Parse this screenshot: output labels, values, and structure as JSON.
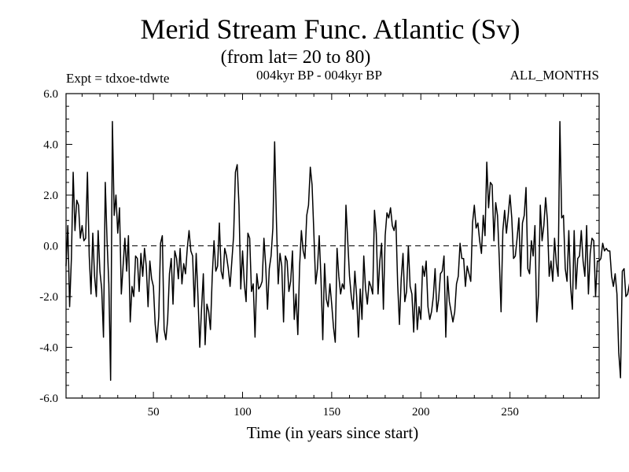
{
  "chart_data": {
    "type": "line",
    "title": "Merid Stream Func. Atlantic (Sv)",
    "subtitle": "(from lat= 20 to 80)",
    "experiment": "Expt = tdxoe-tdwte",
    "period": "004kyr BP - 004kyr BP",
    "months": "ALL_MONTHS",
    "xlabel": "Time (in years since start)",
    "ylabel": "",
    "xlim": [
      1,
      300
    ],
    "ylim": [
      -6,
      6
    ],
    "xticks": [
      50,
      100,
      150,
      200,
      250
    ],
    "xtick_labels": [
      "50",
      "100",
      "150",
      "200",
      "250"
    ],
    "yticks": [
      -6,
      -4,
      -2,
      0,
      2,
      4,
      6
    ],
    "ytick_labels": [
      "-6.0",
      "-4.0",
      "-2.0",
      "0.0",
      "2.0",
      "4.0",
      "6.0"
    ],
    "reference_line": 0,
    "series": [
      {
        "name": "Merid Stream Func. Atlantic",
        "x_start": 1,
        "x_step": 1,
        "values": [
          -0.8,
          0.8,
          -2.4,
          -0.5,
          2.9,
          0.6,
          1.8,
          1.6,
          0.3,
          0.8,
          0.2,
          0.3,
          2.9,
          -0.4,
          -1.9,
          0.5,
          -1.2,
          -2.0,
          0.6,
          -1.0,
          -1.7,
          -3.6,
          2.5,
          0.2,
          -1.5,
          -5.3,
          4.9,
          1.2,
          2.0,
          0.5,
          1.5,
          -1.9,
          -0.8,
          0.3,
          -1.0,
          0.4,
          -3.0,
          -1.6,
          -2.0,
          -0.4,
          -0.5,
          -1.8,
          -0.3,
          -1.2,
          -0.1,
          -0.8,
          -2.4,
          -0.6,
          -1.3,
          -1.6,
          -3.1,
          -3.8,
          -2.8,
          0.1,
          0.4,
          -3.3,
          -3.7,
          -2.9,
          -1.1,
          -0.5,
          -2.3,
          -0.2,
          -0.5,
          -1.3,
          -0.1,
          -1.5,
          -0.7,
          -1.1,
          -0.1,
          0.6,
          -0.2,
          -0.4,
          -2.4,
          -0.3,
          -2.0,
          -4.0,
          -2.5,
          -1.1,
          -3.9,
          -2.3,
          -2.6,
          -3.3,
          -1.2,
          0.2,
          -1.0,
          -0.8,
          0.9,
          -1.0,
          -1.3,
          -0.1,
          -0.4,
          -0.9,
          -1.6,
          -0.6,
          0.4,
          2.9,
          3.2,
          1.6,
          -1.7,
          -0.2,
          -1.5,
          -2.2,
          0.5,
          0.3,
          -1.8,
          -1.5,
          -3.6,
          -1.1,
          -1.7,
          -1.6,
          -1.4,
          0.3,
          -0.8,
          -2.5,
          -0.9,
          -0.4,
          0.7,
          4.1,
          1.0,
          -1.5,
          -0.3,
          -0.8,
          -3.0,
          -0.4,
          -0.6,
          -1.8,
          -1.4,
          -0.2,
          -2.9,
          -1.9,
          -3.5,
          -0.8,
          0.6,
          -0.2,
          -0.5,
          1.2,
          1.6,
          3.1,
          2.4,
          0.5,
          -1.5,
          -0.9,
          0.4,
          -1.3,
          -3.7,
          -0.7,
          -2.1,
          -2.4,
          -1.5,
          -2.3,
          -3.2,
          -3.8,
          -0.1,
          -1.2,
          -1.9,
          -1.5,
          -1.7,
          1.6,
          0.2,
          -1.2,
          -2.0,
          -2.5,
          -1.0,
          -2.0,
          -3.6,
          -1.7,
          -2.9,
          -0.4,
          -1.7,
          -2.3,
          -1.4,
          -1.6,
          -1.9,
          1.4,
          0.5,
          -1.9,
          -0.6,
          0.1,
          -2.5,
          0.4,
          1.3,
          1.1,
          1.5,
          0.8,
          0.6,
          1.0,
          -1.5,
          -3.1,
          -1.3,
          -0.3,
          -2.2,
          -1.8,
          0.0,
          -1.6,
          -1.9,
          -3.4,
          -1.5,
          -3.3,
          -2.4,
          -2.9,
          -0.8,
          -1.2,
          -0.6,
          -2.4,
          -2.9,
          -2.6,
          -2.0,
          -0.9,
          -2.6,
          -2.1,
          -1.1,
          -1.0,
          -0.4,
          -3.6,
          -1.2,
          -2.2,
          -2.6,
          -3.0,
          -2.6,
          -1.5,
          -1.2,
          0.1,
          -0.5,
          -0.5,
          -1.6,
          -0.8,
          -1.1,
          -1.4,
          0.9,
          1.6,
          0.7,
          0.9,
          0.2,
          -0.3,
          1.2,
          0.4,
          3.3,
          1.5,
          2.5,
          2.4,
          0.2,
          1.7,
          1.2,
          -0.5,
          -2.6,
          0.6,
          1.4,
          0.5,
          1.2,
          2.0,
          1.1,
          -0.5,
          -0.4,
          0.3,
          1.1,
          -1.2,
          0.9,
          1.2,
          2.3,
          -0.9,
          -1.1,
          0.2,
          -0.4,
          0.8,
          -3.0,
          -1.9,
          1.6,
          0.2,
          0.8,
          1.9,
          1.0,
          -1.2,
          -0.6,
          -1.4,
          0.3,
          -0.7,
          -1.2,
          4.9,
          1.1,
          1.2,
          -0.9,
          -1.4,
          0.6,
          -1.6,
          -2.5,
          0.6,
          -1.7,
          -0.5,
          -0.4,
          0.6,
          -0.6,
          -1.2,
          0.8,
          -1.9,
          -0.3,
          0.3,
          0.2,
          -2.0,
          -0.6,
          -0.6,
          -0.5,
          0.1,
          -0.2,
          -0.1,
          -0.2,
          -0.2,
          -1.2,
          -1.6,
          -1.1,
          -1.9,
          -4.2,
          -5.2,
          -1.0,
          -0.9,
          -2.0,
          -1.9,
          -1.5,
          -2.6,
          -1.0,
          -1.9,
          -1.5,
          -0.8,
          -1.2,
          -1.9
        ]
      }
    ]
  }
}
